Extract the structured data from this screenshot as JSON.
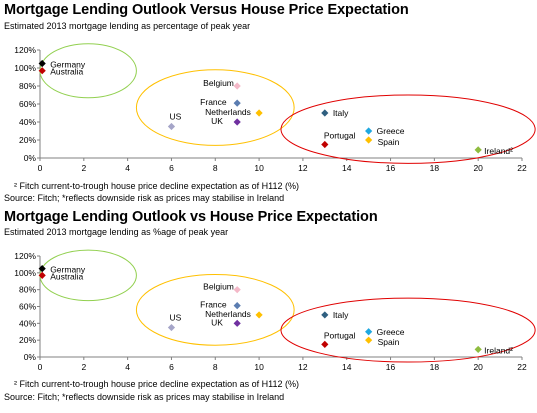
{
  "chart_data": [
    {
      "type": "scatter",
      "title": "Mortgage Lending Outlook Versus House Price Expectation",
      "subtitle": "Estimated  2013 mortgage lending as  percentage of peak year",
      "footnote": "² Fitch current-to-trough house price decline expectation as of H112 (%)",
      "source": "Source: Fitch; *reflects downside risk as prices may stabilise in Ireland",
      "xlim": [
        0,
        22
      ],
      "ylim": [
        0,
        120
      ],
      "xticks": [
        "0",
        "2",
        "4",
        "6",
        "8",
        "10",
        "12",
        "14",
        "16",
        "18",
        "20",
        "22"
      ],
      "yticks": [
        "0%",
        "20%",
        "40%",
        "60%",
        "80%",
        "100%",
        "120%"
      ],
      "grid": false,
      "points": [
        {
          "label": "Germany",
          "x": 0.1,
          "y": 105,
          "color": "#000000"
        },
        {
          "label": "Australia",
          "x": 0.1,
          "y": 97,
          "color": "#c00000"
        },
        {
          "label": "Belgium",
          "x": 9,
          "y": 80,
          "color": "#f4b8c8"
        },
        {
          "label": "France",
          "x": 9,
          "y": 61,
          "color": "#5b7db1"
        },
        {
          "label": "Netherlands",
          "x": 10,
          "y": 50,
          "color": "#ffc000"
        },
        {
          "label": "US",
          "x": 6,
          "y": 35,
          "color": "#a5a5c8"
        },
        {
          "label": "UK",
          "x": 9,
          "y": 40,
          "color": "#7030a0"
        },
        {
          "label": "Italy",
          "x": 13,
          "y": 50,
          "color": "#2f5f80"
        },
        {
          "label": "Greece",
          "x": 15,
          "y": 30,
          "color": "#1fa8e0"
        },
        {
          "label": "Portugal",
          "x": 13,
          "y": 15,
          "color": "#c00000"
        },
        {
          "label": "Spain",
          "x": 15,
          "y": 20,
          "color": "#ffc000"
        },
        {
          "label": "Ireland²",
          "x": 20,
          "y": 9,
          "color": "#8fbc3f"
        }
      ]
    },
    {
      "type": "scatter",
      "title": "Mortgage Lending Outlook vs House Price Expectation",
      "subtitle": "Estimated  2013 mortgage lending as  %age of peak year",
      "footnote": "² Fitch current-to-trough house price decline expectation as of H112 (%)",
      "source": "Source: Fitch; *reflects downside risk as prices may stabilise in Ireland",
      "xlim": [
        0,
        22
      ],
      "ylim": [
        0,
        120
      ],
      "xticks": [
        "0",
        "2",
        "4",
        "6",
        "8",
        "10",
        "12",
        "14",
        "16",
        "18",
        "20",
        "22"
      ],
      "yticks": [
        "0%",
        "20%",
        "40%",
        "60%",
        "80%",
        "100%",
        "120%"
      ],
      "grid": false,
      "points": [
        {
          "label": "Germany",
          "x": 0.1,
          "y": 105,
          "color": "#000000"
        },
        {
          "label": "Australia",
          "x": 0.1,
          "y": 97,
          "color": "#c00000"
        },
        {
          "label": "Belgium",
          "x": 9,
          "y": 80,
          "color": "#f4b8c8"
        },
        {
          "label": "France",
          "x": 9,
          "y": 61,
          "color": "#5b7db1"
        },
        {
          "label": "Netherlands",
          "x": 10,
          "y": 50,
          "color": "#ffc000"
        },
        {
          "label": "US",
          "x": 6,
          "y": 35,
          "color": "#a5a5c8"
        },
        {
          "label": "UK",
          "x": 9,
          "y": 40,
          "color": "#7030a0"
        },
        {
          "label": "Italy",
          "x": 13,
          "y": 50,
          "color": "#2f5f80"
        },
        {
          "label": "Greece",
          "x": 15,
          "y": 30,
          "color": "#1fa8e0"
        },
        {
          "label": "Portugal",
          "x": 13,
          "y": 15,
          "color": "#c00000"
        },
        {
          "label": "Spain",
          "x": 15,
          "y": 20,
          "color": "#ffc000"
        },
        {
          "label": "Ireland²",
          "x": 20,
          "y": 9,
          "color": "#8fbc3f"
        }
      ]
    }
  ]
}
